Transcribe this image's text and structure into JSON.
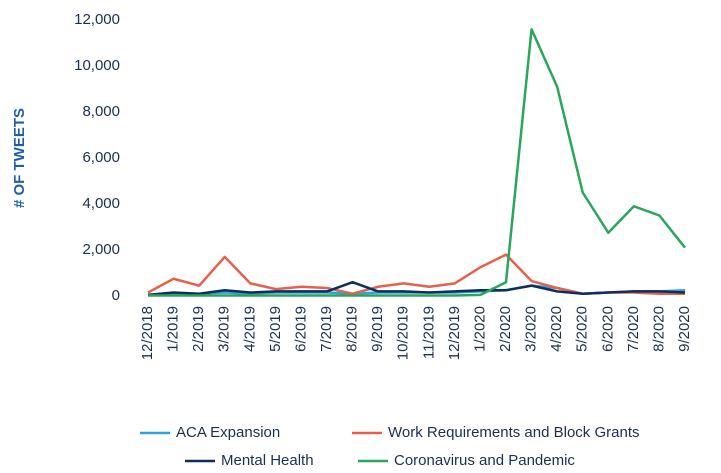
{
  "chart_data": {
    "type": "line",
    "y_label": "# OF TWEETS",
    "categories": [
      "12/2018",
      "1/2019",
      "2/2019",
      "3/2019",
      "4/2019",
      "5/2019",
      "6/2019",
      "7/2019",
      "8/2019",
      "9/2019",
      "10/2019",
      "11/2019",
      "12/2019",
      "1/2020",
      "2/2020",
      "3/2020",
      "4/2020",
      "5/2020",
      "6/2020",
      "7/2020",
      "8/2020",
      "9/2020"
    ],
    "series": [
      {
        "name": "ACA Expansion",
        "color": "#2ea3dc",
        "values": [
          50,
          100,
          100,
          150,
          100,
          150,
          150,
          150,
          100,
          150,
          150,
          150,
          150,
          200,
          250,
          450,
          350,
          100,
          150,
          200,
          200,
          250
        ]
      },
      {
        "name": "Work Requirements and Block Grants",
        "color": "#e8604c",
        "values": [
          150,
          750,
          450,
          1700,
          550,
          300,
          400,
          350,
          100,
          400,
          550,
          400,
          550,
          1250,
          1800,
          650,
          350,
          100,
          150,
          150,
          100,
          100
        ]
      },
      {
        "name": "Mental Health",
        "color": "#0d2f5e",
        "values": [
          50,
          150,
          100,
          250,
          150,
          200,
          200,
          200,
          600,
          200,
          200,
          150,
          200,
          250,
          250,
          450,
          200,
          100,
          150,
          200,
          200,
          150
        ]
      },
      {
        "name": "Coronavirus and Pandemic",
        "color": "#2aa65a",
        "values": [
          20,
          20,
          20,
          20,
          20,
          20,
          20,
          20,
          20,
          20,
          20,
          20,
          20,
          50,
          600,
          11600,
          9100,
          4500,
          2750,
          3900,
          3500,
          2100
        ]
      }
    ],
    "ylim": [
      0,
      12000
    ],
    "yticks": [
      0,
      {
        "value": 2000,
        "label": "2,000"
      },
      {
        "value": 4000,
        "label": "4,000"
      },
      {
        "value": 6000,
        "label": "6,000"
      },
      {
        "value": 8000,
        "label": "8,000"
      },
      {
        "value": 10000,
        "label": "10,000"
      },
      {
        "value": 12000,
        "label": "12,000"
      }
    ],
    "grid": false
  }
}
